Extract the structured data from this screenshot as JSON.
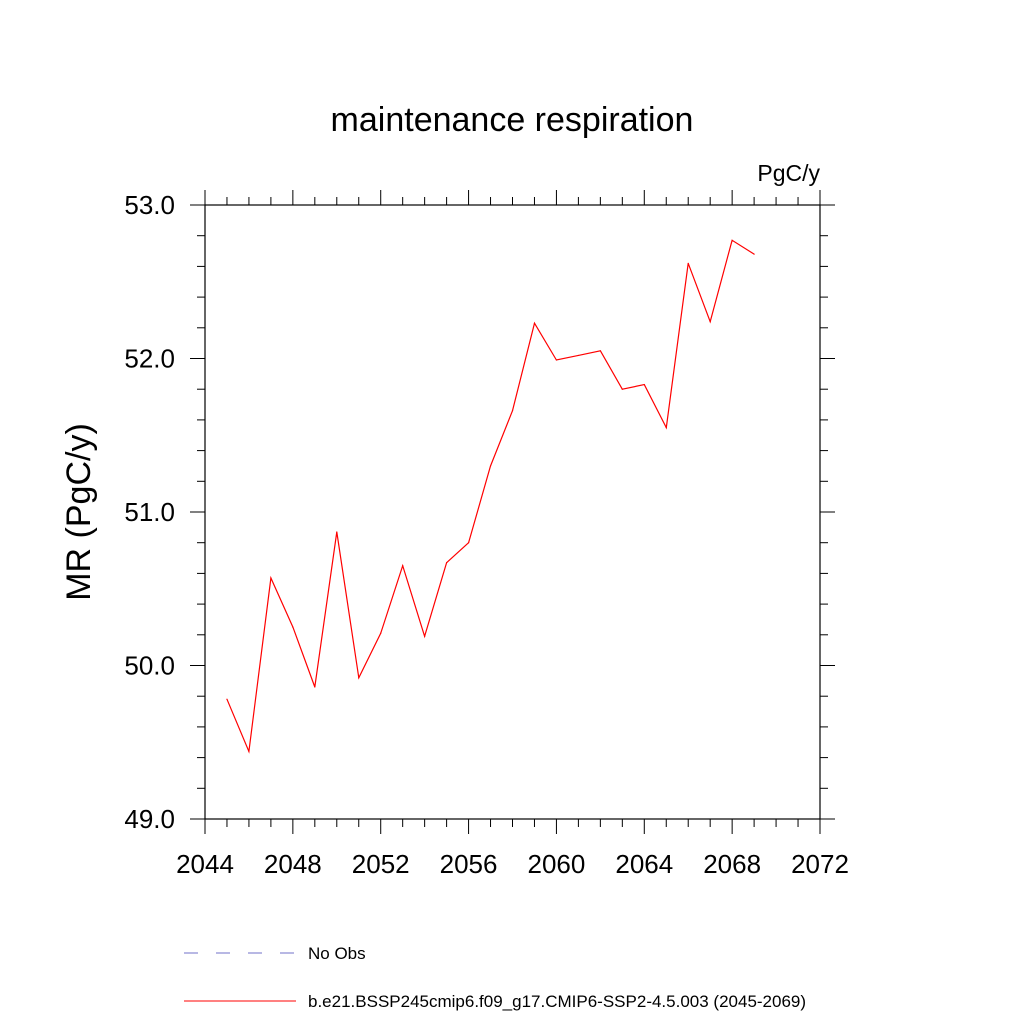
{
  "chart_data": {
    "type": "line",
    "title": "maintenance respiration",
    "units_label": "PgC/y",
    "ylabel": "MR  (PgC/y)",
    "xlabel": "",
    "xlim": [
      2044,
      2072
    ],
    "ylim": [
      49.0,
      53.0
    ],
    "x_ticks": [
      2044,
      2048,
      2052,
      2056,
      2060,
      2064,
      2068,
      2072
    ],
    "x_tick_labels": [
      "2044",
      "2048",
      "2052",
      "2056",
      "2060",
      "2064",
      "2068",
      "2072"
    ],
    "x_minor_step": 1,
    "y_ticks": [
      49.0,
      50.0,
      51.0,
      52.0,
      53.0
    ],
    "y_tick_labels": [
      "49.0",
      "50.0",
      "51.0",
      "52.0",
      "53.0"
    ],
    "y_minor_step": 0.2,
    "grid": false,
    "legend_position": "bottom",
    "series": [
      {
        "name": "b.e21.BSSP245cmip6.f09_g17.CMIP6-SSP2-4.5.003 (2045-2069)",
        "color": "#ff0000",
        "dash": "solid",
        "x": [
          2045,
          2046,
          2047,
          2048,
          2049,
          2050,
          2051,
          2052,
          2053,
          2054,
          2055,
          2056,
          2057,
          2058,
          2059,
          2060,
          2061,
          2062,
          2063,
          2064,
          2065,
          2066,
          2067,
          2068,
          2069
        ],
        "values": [
          49.78,
          49.44,
          50.57,
          50.25,
          49.86,
          50.87,
          49.92,
          50.21,
          50.65,
          50.19,
          50.67,
          50.8,
          51.3,
          51.66,
          52.23,
          51.99,
          52.02,
          52.05,
          51.8,
          51.83,
          51.55,
          52.62,
          52.24,
          52.77,
          52.68
        ]
      }
    ],
    "legend": [
      {
        "label": "No Obs",
        "color": "#7070c8",
        "dash": "dashed"
      },
      {
        "label": "b.e21.BSSP245cmip6.f09_g17.CMIP6-SSP2-4.5.003 (2045-2069)",
        "color": "#ff0000",
        "dash": "solid"
      }
    ]
  }
}
